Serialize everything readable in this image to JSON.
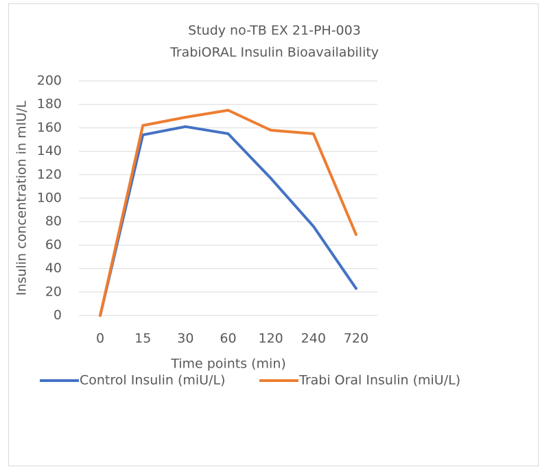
{
  "chart_data": {
    "type": "line",
    "title": "Study no-TB EX 21-PH-003",
    "subtitle": "TrabiORAL Insulin Bioavailability",
    "x_label": "Time points (min)",
    "y_label": "Insulin concentration in mIU/L",
    "categories": [
      "0",
      "15",
      "30",
      "60",
      "120",
      "240",
      "720"
    ],
    "series": [
      {
        "name": "Control Insulin (miU/L)",
        "color": "#4472c4",
        "values": [
          0,
          154,
          161,
          155,
          117,
          76,
          23
        ]
      },
      {
        "name": "Trabi Oral Insulin (miU/L)",
        "color": "#ed7d31",
        "values": [
          0,
          162,
          169,
          175,
          158,
          155,
          69
        ]
      }
    ],
    "ylim": [
      0,
      200
    ],
    "yticks": [
      0,
      20,
      40,
      60,
      80,
      100,
      120,
      140,
      160,
      180,
      200
    ],
    "grid": true,
    "legend": "bottom"
  }
}
